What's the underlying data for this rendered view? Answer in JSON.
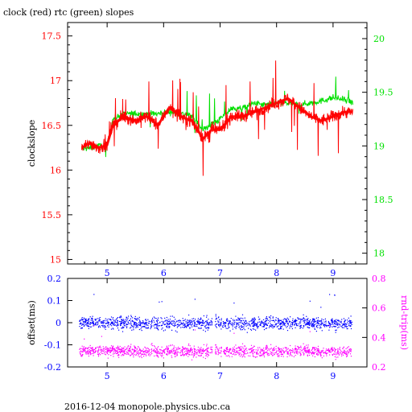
{
  "title": "clock (red) rtc (green) slopes",
  "footer": "2016-12-04 monopole.physics.ubc.ca",
  "chart_data": [
    {
      "type": "line",
      "title": "clock (red) rtc (green) slopes",
      "ylabel": "clockslope",
      "xlim": [
        4.3,
        9.6
      ],
      "ylim": [
        14.95,
        17.65
      ],
      "y2lim": [
        17.9,
        20.15
      ],
      "xticks": [
        "5",
        "6",
        "7",
        "8",
        "9"
      ],
      "yticks": [
        "15",
        "15.5",
        "16",
        "16.5",
        "17",
        "17.5"
      ],
      "y2ticks": [
        "18",
        "18.5",
        "19",
        "19.5",
        "20"
      ],
      "colors": {
        "clock": "#ff0000",
        "rtc": "#00e000",
        "axis_left": "#ff0000",
        "axis_right": "#00e000"
      },
      "series": [
        {
          "name": "clock",
          "color": "#ff0000",
          "axis": "left",
          "x": [
            4.55,
            4.7,
            4.85,
            5.0,
            5.1,
            5.3,
            5.5,
            5.7,
            5.9,
            6.1,
            6.3,
            6.5,
            6.7,
            6.85,
            7.0,
            7.2,
            7.4,
            7.6,
            7.8,
            8.0,
            8.2,
            8.4,
            8.6,
            8.8,
            9.0,
            9.2,
            9.35
          ],
          "y": [
            16.25,
            16.3,
            16.25,
            16.28,
            16.5,
            16.6,
            16.55,
            16.6,
            16.5,
            16.7,
            16.6,
            16.55,
            16.35,
            16.45,
            16.45,
            16.6,
            16.6,
            16.65,
            16.7,
            16.75,
            16.8,
            16.7,
            16.6,
            16.55,
            16.6,
            16.65,
            16.65
          ]
        },
        {
          "name": "rtc",
          "color": "#00e000",
          "axis": "right",
          "x": [
            4.55,
            4.7,
            4.85,
            5.0,
            5.1,
            5.3,
            5.5,
            5.7,
            5.9,
            6.1,
            6.3,
            6.5,
            6.7,
            6.85,
            7.0,
            7.2,
            7.4,
            7.6,
            7.8,
            8.0,
            8.2,
            8.4,
            8.6,
            8.8,
            9.0,
            9.2,
            9.35
          ],
          "y": [
            18.97,
            18.98,
            19.0,
            19.0,
            19.25,
            19.3,
            19.3,
            19.3,
            19.3,
            19.32,
            19.3,
            19.28,
            19.15,
            19.2,
            19.25,
            19.35,
            19.35,
            19.4,
            19.38,
            19.4,
            19.4,
            19.38,
            19.4,
            19.42,
            19.45,
            19.43,
            19.4
          ]
        }
      ]
    },
    {
      "type": "scatter",
      "ylabel": "offset(ms)",
      "y2label": "rnd-trip(ms)",
      "xlim": [
        4.3,
        9.6
      ],
      "ylim": [
        -0.2,
        0.2
      ],
      "y2lim": [
        0.2,
        0.8
      ],
      "xticks": [
        "5",
        "6",
        "7",
        "8",
        "9"
      ],
      "yticks": [
        "-0.2",
        "-0.1",
        "0",
        "0.1",
        "0.2"
      ],
      "y2ticks": [
        "0.2",
        "0.4",
        "0.6",
        "0.8"
      ],
      "colors": {
        "offset": "#0000ff",
        "rnd_trip": "#ff00ff",
        "axis_left": "#0000ff",
        "axis_right": "#ff00ff"
      },
      "gap": [
        6.85,
        6.9
      ],
      "series": [
        {
          "name": "offset",
          "color": "#0000ff",
          "axis": "left",
          "x": [
            4.5,
            9.35
          ],
          "center": 0.0,
          "spread": 0.03
        },
        {
          "name": "rnd-trip",
          "color": "#ff00ff",
          "axis": "right",
          "x": [
            4.5,
            9.35
          ],
          "center": 0.31,
          "spread": 0.04
        }
      ]
    }
  ]
}
